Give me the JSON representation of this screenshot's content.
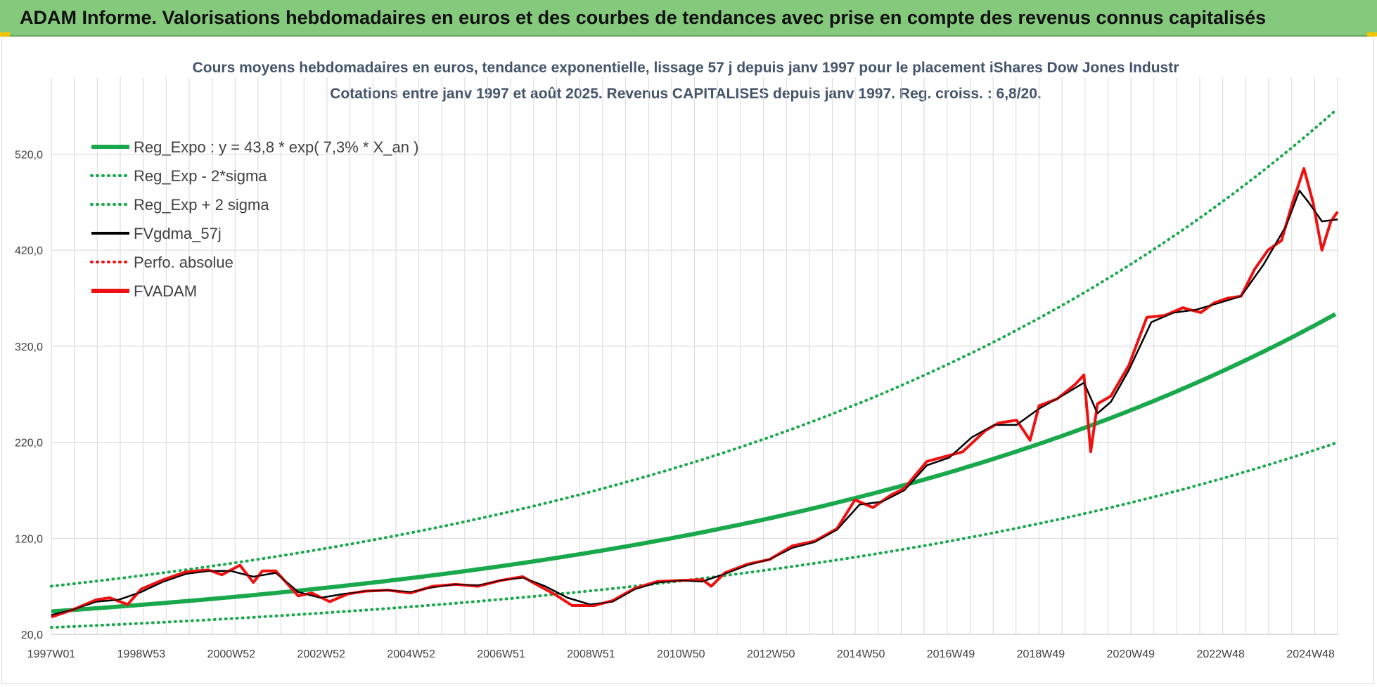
{
  "header": {
    "title": "ADAM Informe. Valorisations hebdomadaires en euros et des courbes de tendances avec prise en compte des revenus connus capitalisés"
  },
  "colors": {
    "banner": "#84c97c",
    "trend": "#1aa84c",
    "moving_average": "#000000",
    "price": "#ee1111",
    "absolute_perf": "#ee1111",
    "grid": "#d9d9d9",
    "axis_text": "#404040",
    "title_text": "#44546a"
  },
  "chart_data": {
    "type": "line",
    "title": "Cours moyens hebdomadaires en euros, tendance exponentielle, lissage 57 j depuis janv 1997  pour le placement iShares Dow Jones Industr",
    "subtitle": "Cotations entre janv 1997 et août 2025. Revenus CAPITALISES depuis janv 1997. Reg. croiss. : 6,8/20.",
    "xlabel": "",
    "ylabel": "",
    "x_range": [
      "1997W01",
      "2025W35"
    ],
    "ylim": [
      20,
      600
    ],
    "y_ticks": [
      "20,0",
      "120,0",
      "220,0",
      "320,0",
      "420,0",
      "520,0"
    ],
    "y_tick_values": [
      20,
      120,
      220,
      320,
      420,
      520
    ],
    "x_ticks": [
      "1997W01",
      "1998W53",
      "2000W52",
      "2002W52",
      "2004W52",
      "2006W51",
      "2008W51",
      "2010W50",
      "2012W50",
      "2014W50",
      "2016W49",
      "2018W49",
      "2020W49",
      "2022W48",
      "2024W48"
    ],
    "grid": true,
    "legend_position": "top-left",
    "legend": [
      {
        "label": "Reg_Expo : y = 43,8 * exp( 7,3% *  X_an )",
        "style": "solid-thick",
        "color": "#1aa84c"
      },
      {
        "label": "Reg_Exp - 2*sigma",
        "style": "dotted",
        "color": "#1aa84c"
      },
      {
        "label": "Reg_Exp + 2 sigma",
        "style": "dotted",
        "color": "#1aa84c"
      },
      {
        "label": "FVgdma_57j",
        "style": "solid",
        "color": "#000000"
      },
      {
        "label": "Perfo. absolue",
        "style": "dotted",
        "color": "#ee1111"
      },
      {
        "label": "FVADAM",
        "style": "solid-thick",
        "color": "#ee1111"
      }
    ],
    "trend": {
      "a": 43.8,
      "rate": 0.073,
      "sigma_lower_factor": 0.62,
      "sigma_upper_factor": 1.6,
      "y_cap": 600
    },
    "series": [
      {
        "name": "FVADAM",
        "x": [
          1997.0,
          1997.5,
          1998.0,
          1998.3,
          1998.7,
          1999.0,
          1999.5,
          2000.0,
          2000.5,
          2000.8,
          2001.2,
          2001.5,
          2001.7,
          2002.0,
          2002.5,
          2002.8,
          2003.2,
          2003.6,
          2004.0,
          2004.5,
          2005.0,
          2005.5,
          2006.0,
          2006.5,
          2007.0,
          2007.5,
          2007.8,
          2008.2,
          2008.6,
          2009.1,
          2009.5,
          2010.0,
          2010.5,
          2011.0,
          2011.5,
          2011.7,
          2012.0,
          2012.5,
          2013.0,
          2013.5,
          2014.0,
          2014.5,
          2014.9,
          2015.3,
          2015.7,
          2016.0,
          2016.5,
          2016.9,
          2017.3,
          2017.8,
          2018.1,
          2018.5,
          2018.8,
          2019.0,
          2019.4,
          2019.8,
          2020.0,
          2020.15,
          2020.3,
          2020.6,
          2021.0,
          2021.4,
          2021.8,
          2022.2,
          2022.6,
          2022.9,
          2023.2,
          2023.5,
          2023.8,
          2024.1,
          2024.4,
          2024.65,
          2024.9,
          2025.1,
          2025.3,
          2025.5,
          2025.65
        ],
        "y": [
          38,
          46,
          56,
          58,
          51,
          67,
          77,
          85,
          87,
          82,
          92,
          74,
          86,
          86,
          60,
          63,
          54,
          62,
          65,
          66,
          63,
          70,
          72,
          70,
          76,
          80,
          72,
          62,
          50,
          50,
          55,
          68,
          75,
          76,
          77,
          70,
          84,
          93,
          98,
          112,
          117,
          130,
          160,
          152,
          165,
          172,
          200,
          205,
          210,
          232,
          240,
          243,
          222,
          258,
          265,
          280,
          290,
          210,
          260,
          268,
          300,
          350,
          352,
          360,
          355,
          365,
          370,
          372,
          400,
          420,
          430,
          470,
          505,
          470,
          420,
          450,
          460
        ]
      },
      {
        "name": "FVgdma_57j",
        "x": [
          1997.0,
          1997.5,
          1998.0,
          1998.5,
          1999.0,
          1999.5,
          2000.0,
          2000.5,
          2001.0,
          2001.5,
          2002.0,
          2002.5,
          2003.0,
          2003.5,
          2004.0,
          2004.5,
          2005.0,
          2005.5,
          2006.0,
          2006.5,
          2007.0,
          2007.5,
          2008.0,
          2008.5,
          2009.0,
          2009.5,
          2010.0,
          2010.5,
          2011.0,
          2011.5,
          2012.0,
          2012.5,
          2013.0,
          2013.5,
          2014.0,
          2014.5,
          2015.0,
          2015.5,
          2016.0,
          2016.5,
          2017.0,
          2017.5,
          2018.0,
          2018.5,
          2019.0,
          2019.5,
          2020.0,
          2020.3,
          2020.6,
          2021.0,
          2021.5,
          2022.0,
          2022.5,
          2023.0,
          2023.5,
          2024.0,
          2024.5,
          2024.8,
          2025.0,
          2025.3,
          2025.65
        ],
        "y": [
          40,
          46,
          54,
          56,
          64,
          75,
          83,
          86,
          86,
          80,
          84,
          64,
          58,
          62,
          65,
          66,
          64,
          69,
          72,
          71,
          76,
          79,
          70,
          58,
          51,
          54,
          67,
          74,
          76,
          75,
          83,
          92,
          98,
          110,
          116,
          129,
          155,
          158,
          170,
          196,
          204,
          225,
          238,
          238,
          255,
          268,
          282,
          250,
          262,
          295,
          345,
          355,
          358,
          365,
          372,
          405,
          445,
          482,
          470,
          450,
          452
        ]
      }
    ]
  }
}
